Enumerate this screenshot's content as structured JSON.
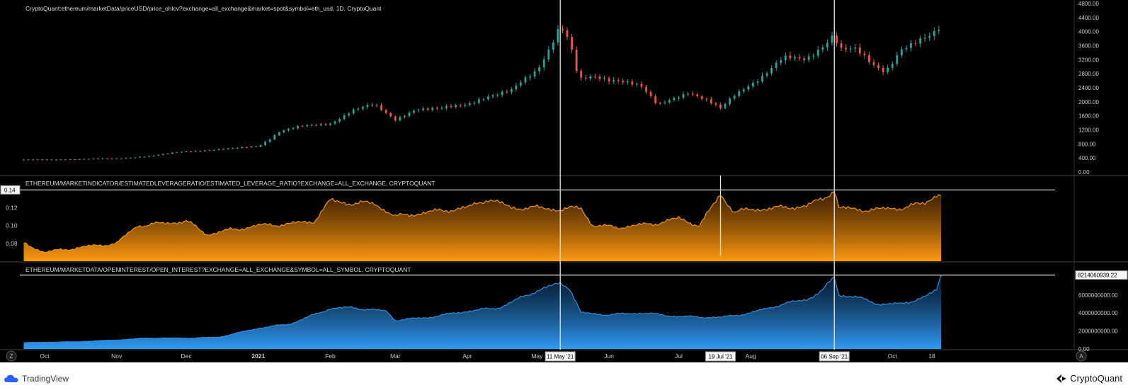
{
  "header": {
    "price_title": "CryptoQuant:ethereum/marketData/priceUSD/price_ohlcv?exchange=all_exchange&market=spot&symbol=eth_usd, 1D, CryptoQuant",
    "leverage_title": "ETHEREUM/MARKETINDICATOR/ESTIMATEDLEVERAGERATIO/ESTIMATED_LEVERAGE_RATIO?EXCHANGE=ALL_EXCHANGE, CRYPTOQUANT",
    "oi_title": "ETHEREUM/MARKETDATA/OPENINTEREST/OPEN_INTEREST?EXCHANGE=ALL_EXCHANGE&SYMBOL=ALL_SYMBOL, CRYPTOQUANT"
  },
  "footer": {
    "tradingview": "TradingView",
    "cryptoquant": "CryptoQuant",
    "left_badge": "Z",
    "right_badge": "A"
  },
  "colors": {
    "background": "#000000",
    "candle_up": "#26a69a",
    "candle_down": "#ef5350",
    "leverage_line": "#f0950f",
    "oi_line": "#2f8fe0",
    "marker_line": "#e8e8e8"
  },
  "chart_data": [
    {
      "type": "candlestick",
      "title": "CryptoQuant:ethereum/marketData/priceUSD/price_ohlcv?exchange=all_exchange&market=spot&symbol=eth_usd, 1D, CryptoQuant",
      "ylim": [
        0,
        4800
      ],
      "yticks": [
        "4800.00",
        "4400.00",
        "4000.00",
        "3600.00",
        "3200.00",
        "2800.00",
        "2400.00",
        "2000.00",
        "1600.00",
        "1200.00",
        "800.00",
        "400.00",
        "0.00"
      ],
      "x": [
        "2020-09-22",
        "2020-10-01",
        "2020-10-15",
        "2020-11-01",
        "2020-11-15",
        "2020-12-01",
        "2020-12-15",
        "2021-01-01",
        "2021-01-10",
        "2021-01-20",
        "2021-02-01",
        "2021-02-10",
        "2021-02-20",
        "2021-03-01",
        "2021-03-10",
        "2021-03-20",
        "2021-04-01",
        "2021-04-10",
        "2021-04-20",
        "2021-05-01",
        "2021-05-06",
        "2021-05-11",
        "2021-05-15",
        "2021-05-19",
        "2021-05-25",
        "2021-06-05",
        "2021-06-15",
        "2021-06-22",
        "2021-07-05",
        "2021-07-19",
        "2021-07-25",
        "2021-08-05",
        "2021-08-15",
        "2021-08-25",
        "2021-09-01",
        "2021-09-06",
        "2021-09-08",
        "2021-09-15",
        "2021-09-22",
        "2021-09-28",
        "2021-10-05",
        "2021-10-12",
        "2021-10-18",
        "2021-10-22"
      ],
      "close": [
        345,
        355,
        365,
        385,
        450,
        590,
        640,
        730,
        1150,
        1300,
        1380,
        1750,
        1900,
        1500,
        1800,
        1780,
        1960,
        2150,
        2300,
        2950,
        3500,
        4160,
        3700,
        2600,
        2700,
        2650,
        2400,
        1900,
        2300,
        1800,
        2200,
        2700,
        3200,
        3250,
        3600,
        3950,
        3500,
        3450,
        3100,
        2900,
        3500,
        3700,
        3850,
        4150
      ],
      "annotations": {
        "marker_dates": [
          "11 May '21",
          "06 Sep '21"
        ]
      }
    },
    {
      "type": "area",
      "title": "ETHEREUM/MARKETINDICATOR/ESTIMATEDLEVERAGERATIO/ESTIMATED_LEVERAGE_RATIO?EXCHANGE=ALL_EXCHANGE, CRYPTOQUANT",
      "ylim": [
        0.06,
        0.145
      ],
      "yticks": [
        "0.14",
        "0.12",
        "0.10",
        "0.08"
      ],
      "current_value_label": "0.14",
      "x": [
        "2020-09-22",
        "2020-10-01",
        "2020-10-15",
        "2020-11-01",
        "2020-11-10",
        "2020-11-20",
        "2020-12-01",
        "2020-12-10",
        "2020-12-20",
        "2021-01-01",
        "2021-01-15",
        "2021-01-25",
        "2021-02-01",
        "2021-02-10",
        "2021-02-20",
        "2021-03-01",
        "2021-03-15",
        "2021-04-01",
        "2021-04-10",
        "2021-04-20",
        "2021-05-01",
        "2021-05-11",
        "2021-05-20",
        "2021-05-25",
        "2021-06-05",
        "2021-06-20",
        "2021-07-01",
        "2021-07-10",
        "2021-07-19",
        "2021-07-25",
        "2021-08-01",
        "2021-08-15",
        "2021-08-25",
        "2021-09-01",
        "2021-09-06",
        "2021-09-08",
        "2021-09-15",
        "2021-09-25",
        "2021-10-05",
        "2021-10-15",
        "2021-10-20",
        "2021-10-22"
      ],
      "values": [
        0.08,
        0.07,
        0.075,
        0.08,
        0.1,
        0.102,
        0.105,
        0.09,
        0.095,
        0.1,
        0.102,
        0.105,
        0.128,
        0.125,
        0.125,
        0.11,
        0.115,
        0.12,
        0.13,
        0.12,
        0.12,
        0.118,
        0.12,
        0.1,
        0.098,
        0.102,
        0.108,
        0.1,
        0.135,
        0.115,
        0.118,
        0.12,
        0.122,
        0.13,
        0.14,
        0.12,
        0.118,
        0.118,
        0.12,
        0.125,
        0.135,
        0.135
      ],
      "annotations": {
        "marker_dates": [
          "11 May '21",
          "19 Jul '21",
          "06 Sep '21"
        ]
      }
    },
    {
      "type": "area",
      "title": "ETHEREUM/MARKETDATA/OPENINTEREST/OPEN_INTEREST?EXCHANGE=ALL_EXCHANGE&SYMBOL=ALL_SYMBOL, CRYPTOQUANT",
      "ylim": [
        0,
        8500000000
      ],
      "yticks": [
        "6000000000.00",
        "4000000000.00",
        "2000000000.00",
        "0.00"
      ],
      "current_value_label": "8214060939.22",
      "x": [
        "2020-09-22",
        "2020-10-15",
        "2020-11-01",
        "2020-11-15",
        "2020-12-01",
        "2020-12-15",
        "2021-01-01",
        "2021-01-15",
        "2021-02-01",
        "2021-02-10",
        "2021-02-25",
        "2021-03-01",
        "2021-03-15",
        "2021-04-01",
        "2021-04-15",
        "2021-05-01",
        "2021-05-11",
        "2021-05-15",
        "2021-05-20",
        "2021-06-01",
        "2021-06-15",
        "2021-07-01",
        "2021-07-19",
        "2021-08-01",
        "2021-08-15",
        "2021-08-25",
        "2021-09-01",
        "2021-09-06",
        "2021-09-08",
        "2021-09-15",
        "2021-09-25",
        "2021-10-05",
        "2021-10-15",
        "2021-10-20",
        "2021-10-22"
      ],
      "values": [
        700000000,
        800000000,
        1000000000,
        1200000000,
        1200000000,
        1300000000,
        2300000000,
        2800000000,
        4500000000,
        4600000000,
        4200000000,
        3200000000,
        3500000000,
        4200000000,
        4600000000,
        6500000000,
        7300000000,
        6800000000,
        4000000000,
        3800000000,
        4000000000,
        3600000000,
        3500000000,
        4000000000,
        5000000000,
        5500000000,
        6500000000,
        8000000000,
        6000000000,
        5800000000,
        5000000000,
        5000000000,
        5800000000,
        6500000000,
        8200000000
      ],
      "annotations": {
        "marker_dates": [
          "11 May '21",
          "06 Sep '21"
        ]
      }
    }
  ],
  "xaxis": {
    "ticks": [
      {
        "label": "Oct",
        "date": "2020-10-01"
      },
      {
        "label": "Nov",
        "date": "2020-11-01"
      },
      {
        "label": "Dec",
        "date": "2020-12-01"
      },
      {
        "label": "2021",
        "date": "2021-01-01"
      },
      {
        "label": "Feb",
        "date": "2021-02-01"
      },
      {
        "label": "Mar",
        "date": "2021-03-01"
      },
      {
        "label": "Apr",
        "date": "2021-04-01"
      },
      {
        "label": "May",
        "date": "2021-05-01"
      },
      {
        "label": "Jun",
        "date": "2021-06-01"
      },
      {
        "label": "Jul",
        "date": "2021-07-01"
      },
      {
        "label": "Aug",
        "date": "2021-08-01"
      },
      {
        "label": "Oct",
        "date": "2021-10-01"
      },
      {
        "label": "18",
        "date": "2021-10-18"
      }
    ],
    "markers": [
      {
        "label": "11 May '21",
        "date": "2021-05-11"
      },
      {
        "label": "19 Jul '21",
        "date": "2021-07-19"
      },
      {
        "label": "06 Sep '21",
        "date": "2021-09-06"
      }
    ]
  }
}
